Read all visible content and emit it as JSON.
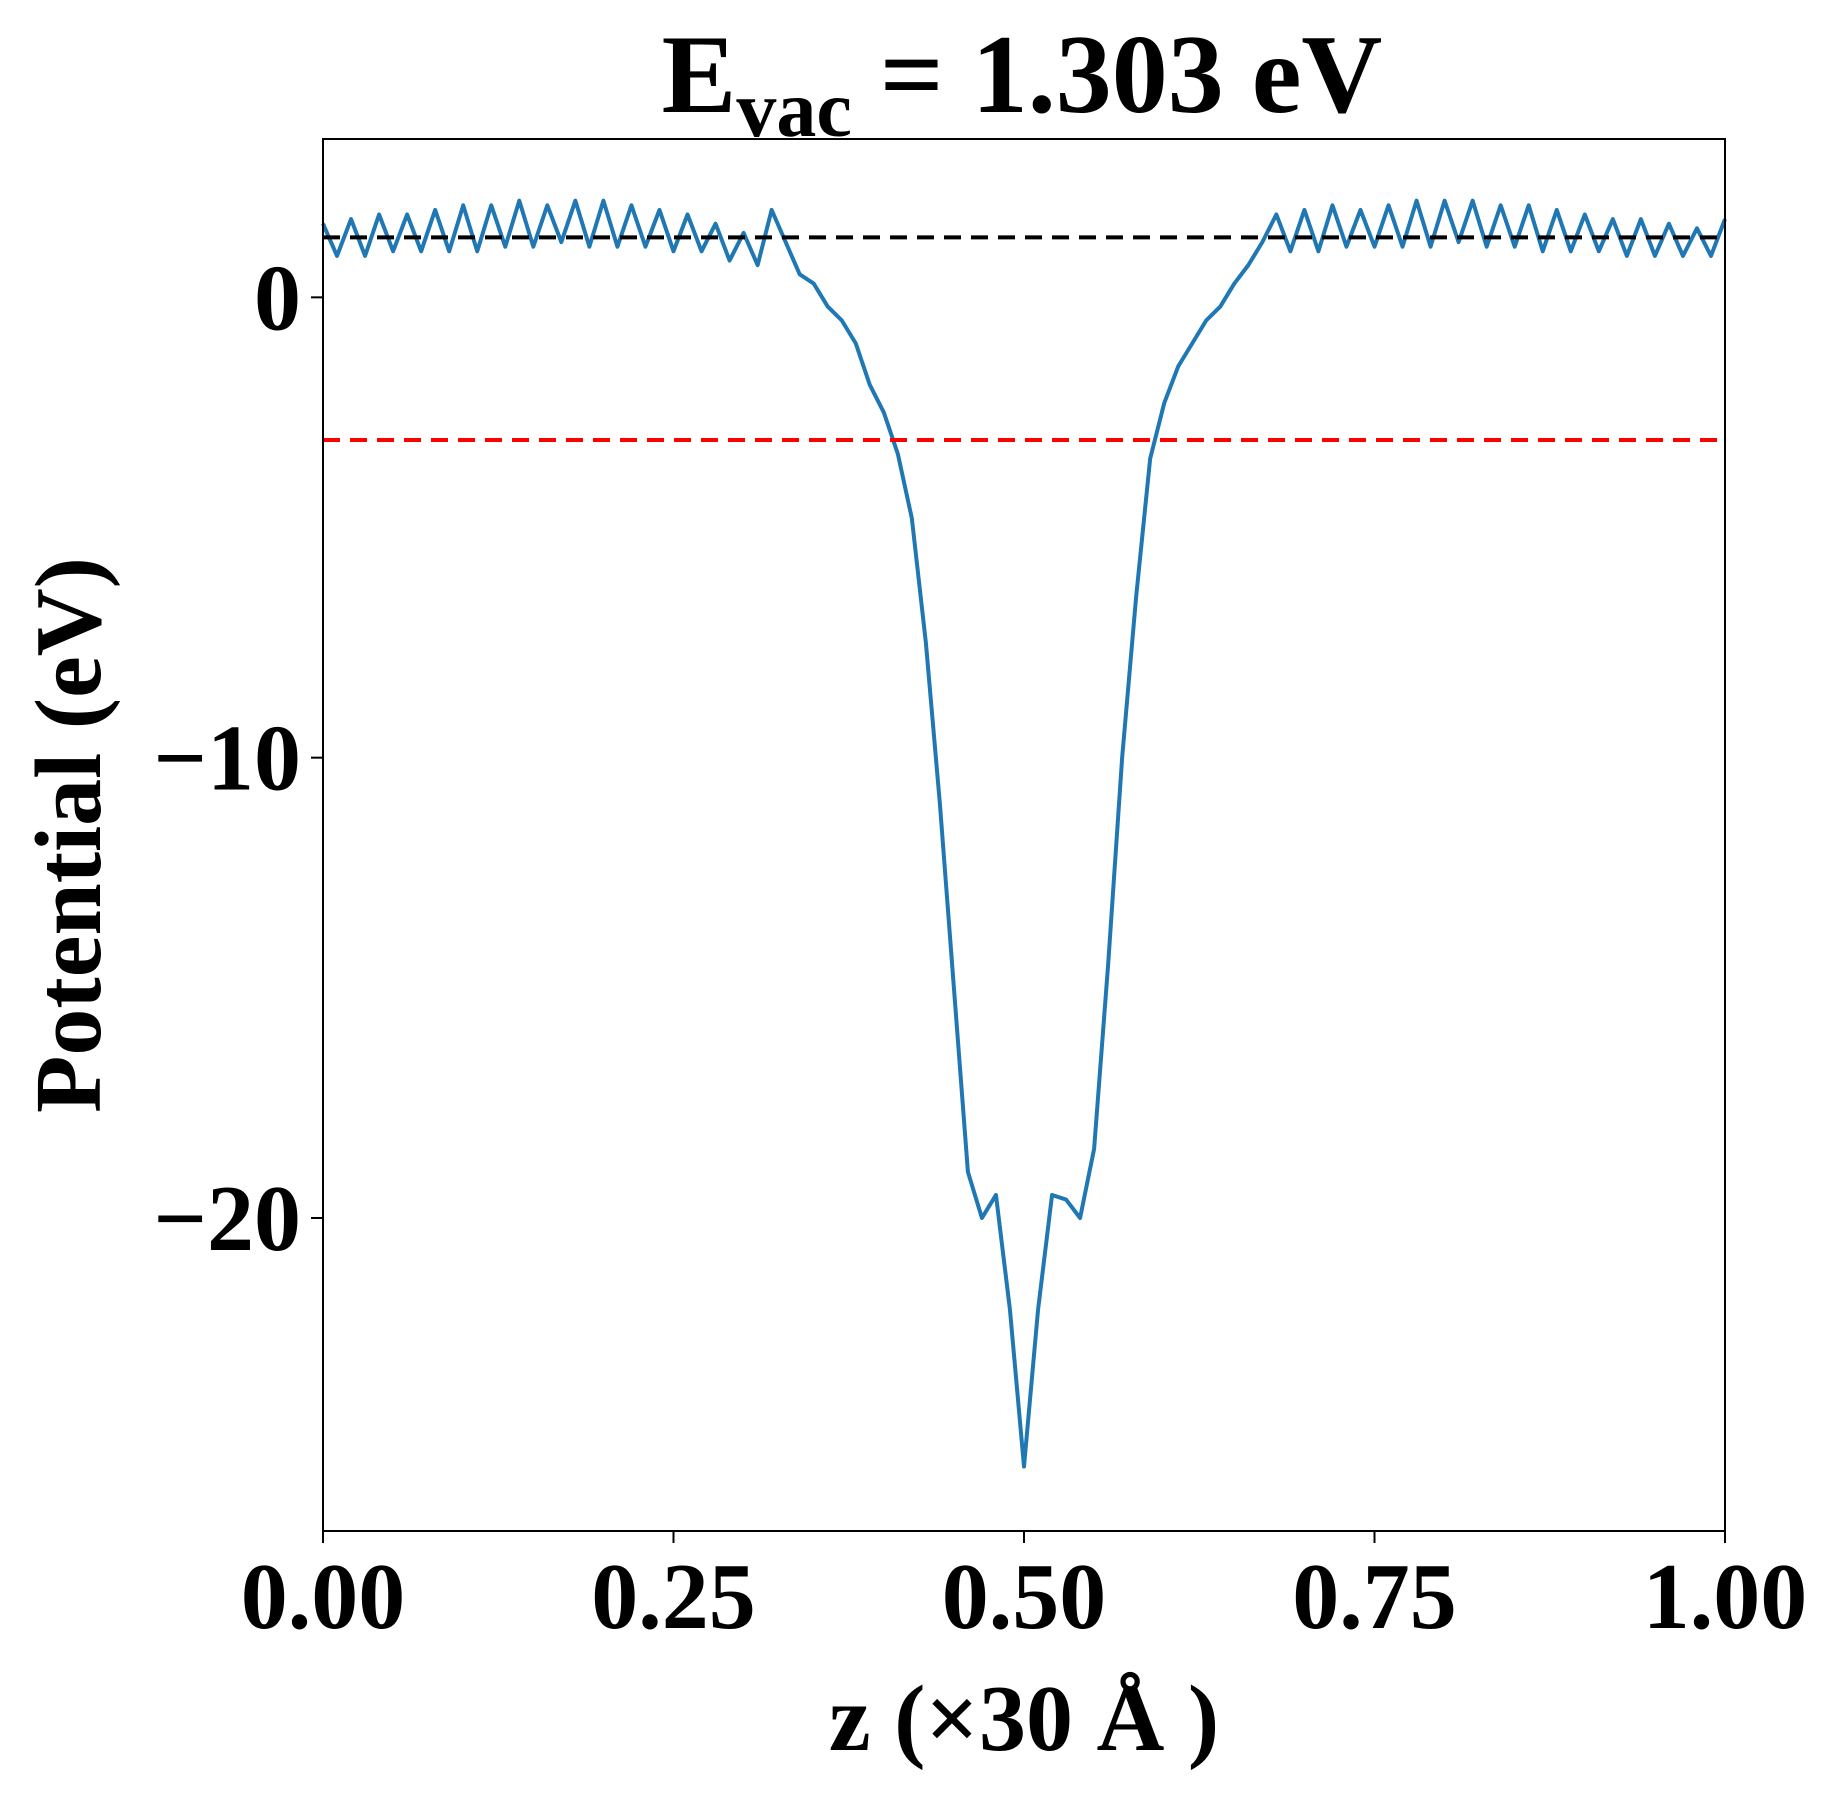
{
  "chart_data": {
    "type": "line",
    "title": {
      "main": "E",
      "subscript": "vac",
      "suffix": " = 1.303 eV"
    },
    "x_label": "z (×30 Å )",
    "y_label": "Potential (eV)",
    "x": [
      0.0,
      0.01,
      0.02,
      0.03,
      0.04,
      0.05,
      0.06,
      0.07,
      0.08,
      0.09,
      0.1,
      0.11,
      0.12,
      0.13,
      0.14,
      0.15,
      0.16,
      0.17,
      0.18,
      0.19,
      0.2,
      0.21,
      0.22,
      0.23,
      0.24,
      0.25,
      0.26,
      0.27,
      0.28,
      0.29,
      0.3,
      0.31,
      0.32,
      0.33,
      0.34,
      0.35,
      0.36,
      0.37,
      0.38,
      0.39,
      0.4,
      0.41,
      0.42,
      0.43,
      0.44,
      0.45,
      0.46,
      0.47,
      0.48,
      0.49,
      0.5,
      0.51,
      0.52,
      0.53,
      0.54,
      0.55,
      0.56,
      0.57,
      0.58,
      0.59,
      0.6,
      0.61,
      0.62,
      0.63,
      0.64,
      0.65,
      0.66,
      0.67,
      0.68,
      0.69,
      0.7,
      0.71,
      0.72,
      0.73,
      0.74,
      0.75,
      0.76,
      0.77,
      0.78,
      0.79,
      0.8,
      0.81,
      0.82,
      0.83,
      0.84,
      0.85,
      0.86,
      0.87,
      0.88,
      0.89,
      0.9,
      0.91,
      0.92,
      0.93,
      0.94,
      0.95,
      0.96,
      0.97,
      0.98,
      0.99,
      1.0
    ],
    "series": [
      {
        "color": "#1f77b4",
        "values": [
          1.6,
          0.9,
          1.7,
          0.9,
          1.8,
          1.0,
          1.8,
          1.0,
          1.9,
          1.0,
          2.0,
          1.0,
          2.0,
          1.1,
          2.1,
          1.1,
          2.0,
          1.2,
          2.1,
          1.1,
          2.1,
          1.1,
          2.0,
          1.1,
          1.9,
          1.0,
          1.8,
          1.0,
          1.6,
          0.8,
          1.4,
          0.7,
          1.9,
          1.2,
          0.5,
          0.3,
          -0.2,
          -0.5,
          -1.0,
          -1.9,
          -2.5,
          -3.4,
          -4.8,
          -7.5,
          -11.0,
          -15.0,
          -19.0,
          -20.0,
          -19.5,
          -22.0,
          -25.4,
          -22.0,
          -19.5,
          -19.6,
          -20.0,
          -18.5,
          -14.5,
          -10.0,
          -6.5,
          -3.5,
          -2.3,
          -1.5,
          -1.0,
          -0.5,
          -0.2,
          0.3,
          0.7,
          1.2,
          1.8,
          1.0,
          1.9,
          1.0,
          2.0,
          1.1,
          1.9,
          1.1,
          2.0,
          1.1,
          2.1,
          1.1,
          2.1,
          1.2,
          2.1,
          1.1,
          2.0,
          1.1,
          2.0,
          1.0,
          1.9,
          1.0,
          1.8,
          1.0,
          1.7,
          0.9,
          1.7,
          0.9,
          1.6,
          0.9,
          1.5,
          0.9,
          1.7
        ]
      }
    ],
    "hlines": [
      {
        "value": 1.303,
        "color": "#000000"
      },
      {
        "value": -3.1,
        "color": "#ff0000"
      }
    ],
    "xlim": [
      0,
      1
    ],
    "ylim": [
      -26.8,
      3.44
    ],
    "xticks": [
      {
        "value": 0,
        "label": "0.00"
      },
      {
        "value": 0.25,
        "label": "0.25"
      },
      {
        "value": 0.5,
        "label": "0.50"
      },
      {
        "value": 0.75,
        "label": "0.75"
      },
      {
        "value": 1,
        "label": "1.00"
      }
    ],
    "yticks": [
      {
        "value": -20,
        "label": "−20"
      },
      {
        "value": -10,
        "label": "−10"
      },
      0
    ]
  }
}
